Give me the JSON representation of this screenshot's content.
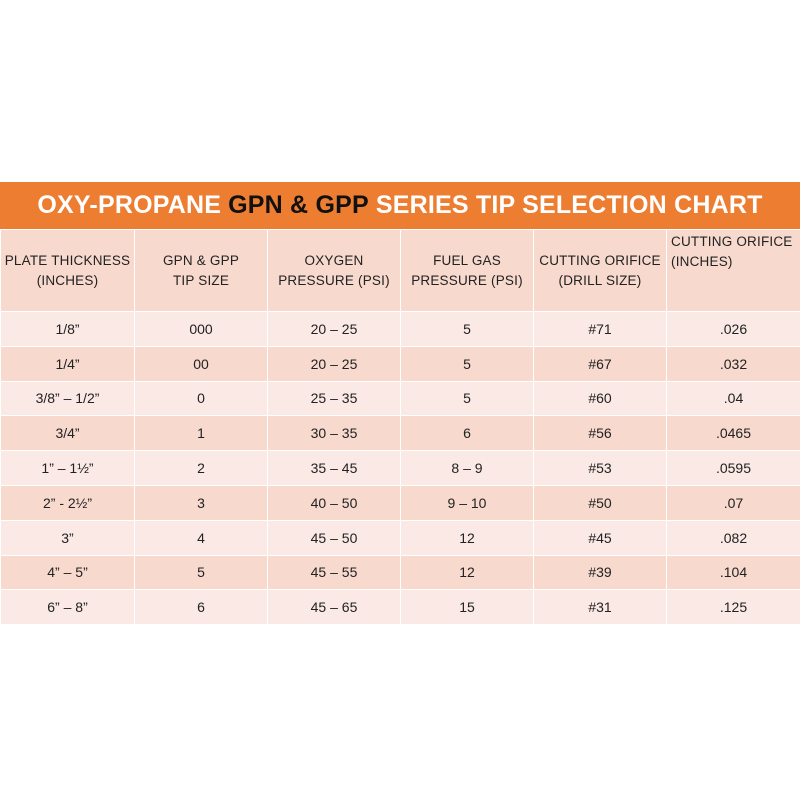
{
  "title": {
    "part1": "OXY-PROPANE",
    "part2": "GPN & GPP",
    "part3": "SERIES TIP SELECTION CHART"
  },
  "headers": [
    {
      "line1": "PLATE THICKNESS",
      "line2": "(INCHES)"
    },
    {
      "line1": "GPN & GPP",
      "line2": "TIP SIZE"
    },
    {
      "line1": "OXYGEN",
      "line2": "PRESSURE (PSI)"
    },
    {
      "line1": "FUEL GAS",
      "line2": "PRESSURE (PSI)"
    },
    {
      "line1": "CUTTING ORIFICE",
      "line2": "(DRILL SIZE)"
    },
    {
      "line1": "CUTTING ORIFICE",
      "line2": "(INCHES)"
    }
  ],
  "rows": [
    [
      "1/8”",
      "000",
      "20 – 25",
      "5",
      "#71",
      ".026"
    ],
    [
      "1/4”",
      "00",
      "20 – 25",
      "5",
      "#67",
      ".032"
    ],
    [
      "3/8” – 1/2”",
      "0",
      "25 – 35",
      "5",
      "#60",
      ".04"
    ],
    [
      "3/4”",
      "1",
      "30 – 35",
      "6",
      "#56",
      ".0465"
    ],
    [
      "1” – 1½”",
      "2",
      "35 – 45",
      "8 – 9",
      "#53",
      ".0595"
    ],
    [
      "2” - 2½”",
      "3",
      "40 – 50",
      "9 – 10",
      "#50",
      ".07"
    ],
    [
      "3”",
      "4",
      "45 – 50",
      "12",
      "#45",
      ".082"
    ],
    [
      "4” – 5”",
      "5",
      "45 – 55",
      "12",
      "#39",
      ".104"
    ],
    [
      "6” – 8”",
      "6",
      "45 – 65",
      "15",
      "#31",
      ".125"
    ]
  ],
  "colors": {
    "title_bg": "#ed7d31",
    "row_dark": "#f7d9ce",
    "row_light": "#fbe9e5"
  }
}
